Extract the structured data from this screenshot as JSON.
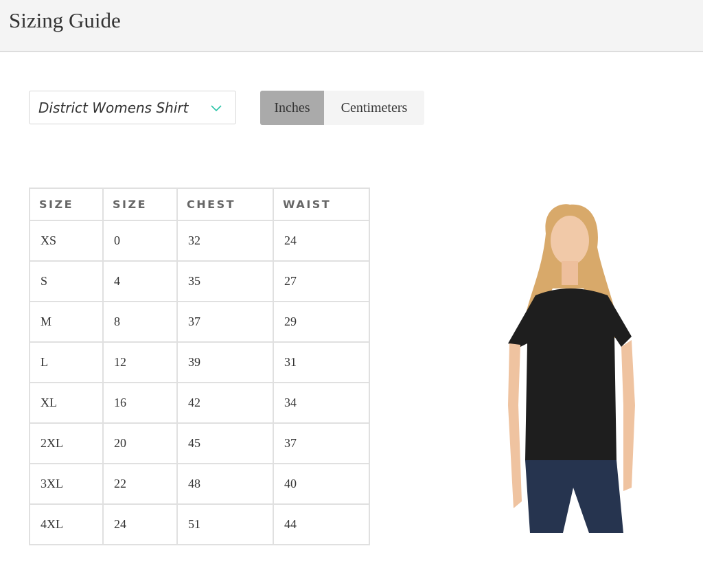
{
  "header": {
    "title": "Sizing Guide"
  },
  "product_select": {
    "value": "District Womens Shirt",
    "icon": "chevron-down-icon",
    "accent": "#2bc4a8"
  },
  "units": {
    "options": [
      "Inches",
      "Centimeters"
    ],
    "selected": "Inches"
  },
  "table": {
    "headers": [
      "SIZE",
      "SIZE",
      "CHEST",
      "WAIST"
    ],
    "rows": [
      [
        "XS",
        "0",
        "32",
        "24"
      ],
      [
        "S",
        "4",
        "35",
        "27"
      ],
      [
        "M",
        "8",
        "37",
        "29"
      ],
      [
        "L",
        "12",
        "39",
        "31"
      ],
      [
        "XL",
        "16",
        "42",
        "34"
      ],
      [
        "2XL",
        "20",
        "45",
        "37"
      ],
      [
        "3XL",
        "22",
        "48",
        "40"
      ],
      [
        "4XL",
        "24",
        "51",
        "44"
      ]
    ]
  }
}
